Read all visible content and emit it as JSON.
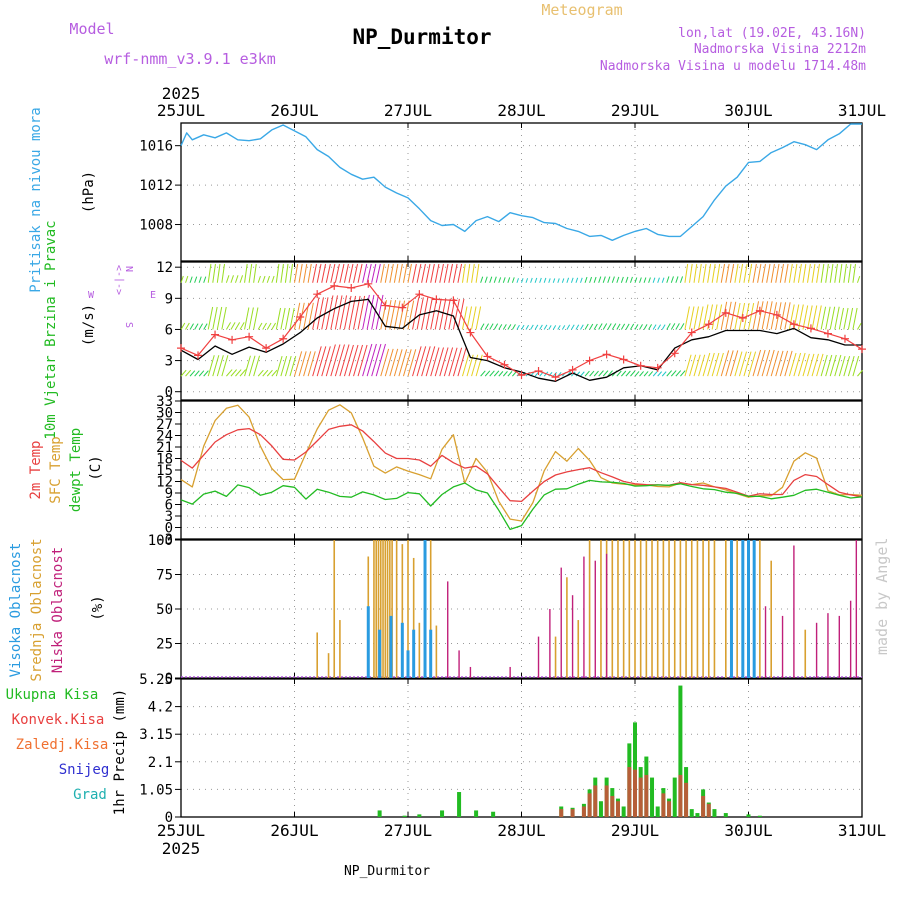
{
  "header": {
    "meteogram_label": "Meteogram",
    "model_label": "Model",
    "model_name": "wrf-nmm_v3.9.1 e3km",
    "station_title": "NP_Durmitor",
    "lonlat": "lon,lat (19.02E, 43.16N)",
    "elevation": "Nadmorska Visina 2212m",
    "model_elevation": "Nadmorska Visina u modelu 1714.48m",
    "footer_station": "NP_Durmitor",
    "credit": "made by Angel",
    "year_top": "2025",
    "year_bottom": "2025"
  },
  "colors": {
    "pressure": "#3aa8e6",
    "wind_mean": "#000000",
    "wind_gust": "#f04040",
    "t2m": "#e84040",
    "tsfc": "#d8a030",
    "dewpt": "#22bb22",
    "high_cloud": "#2a9be0",
    "mid_cloud": "#d8a030",
    "low_cloud": "#c0207a",
    "precip_total": "#22bb22",
    "precip_conv": "#e84040",
    "grid": "#999999"
  },
  "chart_data": {
    "type": "meteogram",
    "time_axis": {
      "start": "25JUL",
      "end": "31JUL",
      "tick_labels": [
        "25JUL",
        "26JUL",
        "27JUL",
        "28JUL",
        "29JUL",
        "30JUL",
        "31JUL"
      ],
      "unit": "days",
      "xlim": [
        0,
        6
      ]
    },
    "panels": [
      {
        "id": "pressure",
        "type": "line",
        "ylabel": "Pritisak na nivou mora",
        "unit": "(hPa)",
        "yticks": [
          1008,
          1012,
          1016
        ],
        "ylim": [
          1004.3,
          1018.3
        ],
        "x": [
          0,
          0.05,
          0.1,
          0.2,
          0.3,
          0.4,
          0.5,
          0.6,
          0.7,
          0.8,
          0.9,
          1.0,
          1.1,
          1.2,
          1.3,
          1.4,
          1.5,
          1.6,
          1.7,
          1.8,
          1.9,
          2.0,
          2.1,
          2.2,
          2.3,
          2.4,
          2.5,
          2.6,
          2.7,
          2.8,
          2.9,
          3.0,
          3.1,
          3.2,
          3.3,
          3.4,
          3.5,
          3.6,
          3.7,
          3.8,
          3.9,
          4.0,
          4.1,
          4.2,
          4.3,
          4.4,
          4.5,
          4.6,
          4.7,
          4.8,
          4.9,
          5.0,
          5.1,
          5.2,
          5.3,
          5.4,
          5.5,
          5.6,
          5.7,
          5.8,
          5.9,
          6.0
        ],
        "values": [
          1016.0,
          1017.3,
          1016.6,
          1017.1,
          1016.8,
          1017.3,
          1016.6,
          1016.5,
          1016.7,
          1017.6,
          1018.1,
          1017.5,
          1016.9,
          1015.6,
          1014.9,
          1013.8,
          1013.1,
          1012.6,
          1012.8,
          1011.8,
          1011.2,
          1010.7,
          1009.6,
          1008.4,
          1007.9,
          1008.0,
          1007.3,
          1008.4,
          1008.8,
          1008.3,
          1009.2,
          1008.9,
          1008.7,
          1008.2,
          1008.1,
          1007.6,
          1007.3,
          1006.8,
          1006.9,
          1006.4,
          1006.9,
          1007.3,
          1007.6,
          1007.0,
          1006.8,
          1006.8,
          1007.8,
          1008.8,
          1010.5,
          1011.9,
          1012.8,
          1014.3,
          1014.4,
          1015.3,
          1015.8,
          1016.4,
          1016.1,
          1015.6,
          1016.6,
          1017.2,
          1018.2,
          1018.2
        ]
      },
      {
        "id": "wind",
        "type": "line",
        "ylabel": "10m Vjetar Brzina i Pravac",
        "unit": "(m/s)",
        "compass": [
          "N",
          "W",
          "E",
          "S"
        ],
        "yticks": [
          0,
          3,
          6,
          9,
          12
        ],
        "ylim": [
          -0.8,
          12.5
        ],
        "x": [
          0,
          0.15,
          0.3,
          0.45,
          0.6,
          0.75,
          0.9,
          1.05,
          1.2,
          1.35,
          1.5,
          1.65,
          1.8,
          1.95,
          2.1,
          2.25,
          2.4,
          2.55,
          2.7,
          2.85,
          3.0,
          3.15,
          3.3,
          3.45,
          3.6,
          3.75,
          3.9,
          4.05,
          4.2,
          4.35,
          4.5,
          4.65,
          4.8,
          4.95,
          5.1,
          5.25,
          5.4,
          5.55,
          5.7,
          5.85,
          6.0
        ],
        "series": [
          {
            "name": "mean",
            "values": [
              4.0,
              3.1,
              4.4,
              3.6,
              4.3,
              3.8,
              4.6,
              5.7,
              7.1,
              8.0,
              8.7,
              8.9,
              6.3,
              6.1,
              7.4,
              7.8,
              7.3,
              3.3,
              3.0,
              2.3,
              1.9,
              1.3,
              1.0,
              1.8,
              1.1,
              1.4,
              2.3,
              2.5,
              2.1,
              4.2,
              5.0,
              5.3,
              5.9,
              5.9,
              5.9,
              5.6,
              6.1,
              5.2,
              5.0,
              4.5,
              4.5
            ]
          },
          {
            "name": "gust",
            "values": [
              4.2,
              3.5,
              5.5,
              5.0,
              5.3,
              4.2,
              5.1,
              7.2,
              9.4,
              10.2,
              10.0,
              10.4,
              8.3,
              8.1,
              9.4,
              8.9,
              8.8,
              5.7,
              3.4,
              2.6,
              1.6,
              2.0,
              1.4,
              2.1,
              3.0,
              3.6,
              3.1,
              2.5,
              2.3,
              3.7,
              5.7,
              6.5,
              7.6,
              7.1,
              7.8,
              7.4,
              6.5,
              6.1,
              5.6,
              5.1,
              4.1
            ]
          }
        ],
        "barb_rows": [
          {
            "level": 1.5,
            "start": 0,
            "end": 6
          },
          {
            "level": 6,
            "start": 0,
            "end": 6
          },
          {
            "level": 10.5,
            "start": 0,
            "end": 6
          }
        ]
      },
      {
        "id": "temperature",
        "type": "line",
        "ylabel": [
          "2m Temp",
          "SFC Temp",
          "dewpt Temp"
        ],
        "unit": "(C)",
        "yticks": [
          -3,
          0,
          3,
          6,
          9,
          12,
          15,
          18,
          21,
          24,
          27,
          30,
          33
        ],
        "ylim": [
          -3,
          33
        ],
        "x": [
          0,
          0.1,
          0.2,
          0.3,
          0.4,
          0.5,
          0.6,
          0.7,
          0.8,
          0.9,
          1.0,
          1.1,
          1.2,
          1.3,
          1.4,
          1.5,
          1.6,
          1.7,
          1.8,
          1.9,
          2.0,
          2.1,
          2.2,
          2.3,
          2.4,
          2.5,
          2.6,
          2.7,
          2.8,
          2.9,
          3.0,
          3.1,
          3.2,
          3.3,
          3.4,
          3.5,
          3.6,
          3.7,
          3.8,
          3.9,
          4.0,
          4.1,
          4.2,
          4.3,
          4.4,
          4.5,
          4.6,
          4.7,
          4.8,
          4.9,
          5.0,
          5.1,
          5.2,
          5.3,
          5.4,
          5.5,
          5.6,
          5.7,
          5.8,
          5.9,
          6.0
        ],
        "series": [
          {
            "name": "2m",
            "values": [
              17.5,
              15.5,
              18.9,
              22.3,
              24.2,
              25.5,
              25.8,
              24.2,
              21.3,
              17.8,
              17.6,
              19.7,
              22.6,
              25.6,
              26.4,
              26.8,
              25.2,
              22.4,
              19.4,
              18.0,
              18.0,
              17.6,
              16.0,
              18.8,
              16.9,
              15.5,
              16.0,
              14.0,
              10.4,
              7.0,
              6.8,
              9.5,
              12.0,
              13.7,
              14.5,
              15.1,
              15.6,
              14.3,
              13.2,
              12.0,
              11.4,
              11.2,
              11.1,
              11.0,
              11.7,
              11.2,
              11.0,
              10.6,
              10.2,
              9.2,
              8.2,
              8.8,
              8.6,
              8.6,
              12.3,
              13.8,
              13.3,
              11.2,
              9.2,
              8.5,
              8.0
            ]
          },
          {
            "name": "sfc",
            "values": [
              12.5,
              10.6,
              21.2,
              27.9,
              31.1,
              31.9,
              28.8,
              21.2,
              15.4,
              12.5,
              12.6,
              19.3,
              25.7,
              30.6,
              32.0,
              29.9,
              23.4,
              16.0,
              14.2,
              15.8,
              14.7,
              13.8,
              12.7,
              20.4,
              24.2,
              11.6,
              18.0,
              14.4,
              6.8,
              2.2,
              1.7,
              6.5,
              14.8,
              19.8,
              17.3,
              20.6,
              17.5,
              13.0,
              11.6,
              11.3,
              11.1,
              11.1,
              10.7,
              10.6,
              11.6,
              11.2,
              11.6,
              10.6,
              9.8,
              8.8,
              7.9,
              8.3,
              8.3,
              10.5,
              17.3,
              19.5,
              18.1,
              9.6,
              8.5,
              8.6,
              8.4
            ]
          },
          {
            "name": "dewpt",
            "values": [
              7.2,
              6.1,
              8.7,
              9.5,
              8.1,
              11.1,
              10.4,
              8.4,
              9.2,
              10.9,
              10.5,
              7.4,
              10.0,
              9.2,
              8.1,
              7.9,
              9.3,
              8.5,
              7.3,
              7.6,
              9.1,
              8.8,
              5.6,
              8.6,
              10.6,
              11.6,
              9.8,
              9.0,
              4.5,
              -0.5,
              0.5,
              4.8,
              8.5,
              10.0,
              10.1,
              11.3,
              12.3,
              11.9,
              11.8,
              11.5,
              10.8,
              10.9,
              11.1,
              11.0,
              11.4,
              10.7,
              10.1,
              9.9,
              9.2,
              8.9,
              8.1,
              8.1,
              7.5,
              7.9,
              8.4,
              9.7,
              10.0,
              9.2,
              8.4,
              7.7,
              8.0
            ]
          }
        ]
      },
      {
        "id": "clouds",
        "type": "bar",
        "ylabel": [
          "Visoka Oblacnost",
          "Srednja Oblacnost",
          "Niska Oblacnost"
        ],
        "unit": "(%)",
        "yticks": [
          0,
          25,
          50,
          75,
          100
        ],
        "ylim": [
          0,
          100
        ],
        "series": [
          {
            "name": "mid",
            "x": [
              1.2,
              1.3,
              1.35,
              1.4,
              1.65,
              1.7,
              1.72,
              1.74,
              1.76,
              1.78,
              1.8,
              1.82,
              1.84,
              1.86,
              1.9,
              1.95,
              2.0,
              2.05,
              2.1,
              2.15,
              2.2,
              2.25,
              3.3,
              3.4,
              3.5,
              3.6,
              3.7,
              3.75,
              3.8,
              3.85,
              3.9,
              3.95,
              4.0,
              4.05,
              4.1,
              4.15,
              4.2,
              4.25,
              4.3,
              4.35,
              4.4,
              4.45,
              4.5,
              4.55,
              4.6,
              4.65,
              4.7,
              4.8,
              4.9,
              5.0,
              5.1,
              5.2,
              5.5
            ],
            "values": [
              33,
              18,
              100,
              42,
              88,
              100,
              100,
              100,
              100,
              100,
              100,
              100,
              100,
              100,
              100,
              97,
              100,
              87,
              40,
              100,
              100,
              38,
              30,
              73,
              42,
              100,
              100,
              100,
              100,
              100,
              100,
              100,
              100,
              100,
              100,
              100,
              100,
              100,
              100,
              100,
              100,
              100,
              100,
              100,
              100,
              100,
              100,
              100,
              100,
              100,
              100,
              85,
              35
            ]
          },
          {
            "name": "low",
            "x": [
              2.35,
              2.45,
              2.55,
              2.9,
              3.15,
              3.25,
              3.35,
              3.45,
              3.55,
              3.65,
              3.75,
              4.85,
              4.95,
              5.05,
              5.15,
              5.3,
              5.4,
              5.6,
              5.7,
              5.8,
              5.9,
              5.95
            ],
            "values": [
              70,
              20,
              8,
              8,
              30,
              50,
              80,
              60,
              88,
              85,
              90,
              100,
              88,
              50,
              52,
              45,
              96,
              40,
              47,
              45,
              56,
              100
            ]
          },
          {
            "name": "high",
            "x": [
              1.65,
              1.75,
              1.85,
              1.95,
              2.0,
              2.05,
              2.15,
              2.2,
              4.85,
              4.95,
              5.0,
              5.05
            ],
            "values": [
              52,
              35,
              45,
              40,
              20,
              35,
              100,
              35,
              100,
              100,
              100,
              100
            ]
          }
        ]
      },
      {
        "id": "precip",
        "type": "bar",
        "ylabel": "1hr Precip (mm)",
        "legend": [
          "Ukupna Kisa",
          "Konvek.Kisa",
          "Zaledj.Kisa",
          "Snijeg",
          "Grad"
        ],
        "yticks": [
          0,
          1.05,
          2.1,
          3.15,
          4.2,
          5.25
        ],
        "ylim": [
          0,
          5.25
        ],
        "series": [
          {
            "name": "total",
            "x": [
              1.75,
              1.97,
              2.1,
              2.3,
              2.45,
              2.6,
              2.75,
              3.35,
              3.45,
              3.55,
              3.6,
              3.65,
              3.7,
              3.75,
              3.8,
              3.85,
              3.9,
              3.95,
              4.0,
              4.05,
              4.1,
              4.15,
              4.2,
              4.25,
              4.3,
              4.35,
              4.4,
              4.45,
              4.5,
              4.55,
              4.6,
              4.65,
              4.7,
              4.8,
              5.0,
              5.1
            ],
            "values": [
              0.25,
              0.05,
              0.1,
              0.25,
              0.95,
              0.25,
              0.2,
              0.4,
              0.35,
              0.5,
              1.05,
              1.5,
              0.6,
              1.5,
              1.1,
              0.7,
              0.4,
              2.8,
              3.6,
              1.9,
              2.3,
              1.5,
              0.4,
              1.1,
              0.7,
              1.5,
              5.0,
              1.9,
              0.3,
              0.15,
              1.05,
              0.55,
              0.3,
              0.15,
              0.1,
              0.05
            ]
          },
          {
            "name": "convective",
            "x": [
              3.35,
              3.45,
              3.55,
              3.6,
              3.65,
              3.75,
              3.8,
              3.85,
              3.95,
              4.0,
              4.05,
              4.1,
              4.25,
              4.3,
              4.4,
              4.45,
              4.6,
              4.65
            ],
            "values": [
              0.3,
              0.3,
              0.4,
              0.9,
              1.2,
              1.2,
              0.8,
              0.6,
              1.9,
              1.8,
              1.5,
              1.6,
              0.9,
              0.6,
              1.6,
              1.3,
              0.8,
              0.5
            ]
          }
        ]
      }
    ]
  }
}
